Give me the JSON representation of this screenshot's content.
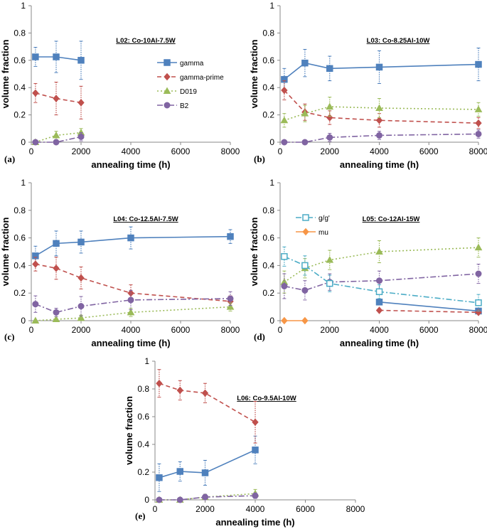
{
  "colors": {
    "gamma": "#4f81bd",
    "gamma_prime": "#c0504d",
    "d019": "#9bbb59",
    "b2": "#8064a2",
    "g_gprime": "#4bacc6",
    "mu": "#f79646",
    "error_bar": "#4f81bd"
  },
  "chart_data": [
    {
      "id": "a",
      "type": "line",
      "panel_label": "(a)",
      "title": "L02: Co-10Al-7.5W",
      "xlabel": "annealing time (h)",
      "ylabel": "volume fraction",
      "xlim": [
        0,
        8000
      ],
      "ylim": [
        0,
        1
      ],
      "xticks": [
        0,
        2000,
        4000,
        6000,
        8000
      ],
      "yticks": [
        0,
        0.2,
        0.4,
        0.6,
        0.8,
        1
      ],
      "ytick_labels": [
        "0",
        "0.2",
        "0.4",
        "0.6",
        "0.8",
        "1"
      ],
      "legend": [
        {
          "name": "gamma",
          "key": "gamma",
          "marker": "square",
          "dash": "solid"
        },
        {
          "name": "gamma-prime",
          "key": "gamma_prime",
          "marker": "diamond",
          "dash": "dashed"
        },
        {
          "name": "D019",
          "key": "d019",
          "marker": "triangle",
          "dash": "dotted"
        },
        {
          "name": "B2",
          "key": "b2",
          "marker": "circle",
          "dash": "dashdot"
        }
      ],
      "series": [
        {
          "name": "gamma",
          "key": "gamma",
          "marker": "square",
          "dash": "solid",
          "x": [
            168,
            1000,
            2000
          ],
          "y": [
            0.625,
            0.625,
            0.6
          ],
          "err": [
            0.07,
            0.115,
            0.14
          ]
        },
        {
          "name": "gamma-prime",
          "key": "gamma_prime",
          "marker": "diamond",
          "dash": "dashed",
          "x": [
            168,
            1000,
            2000
          ],
          "y": [
            0.36,
            0.32,
            0.29
          ],
          "err": [
            0.07,
            0.12,
            0.12
          ]
        },
        {
          "name": "D019",
          "key": "d019",
          "marker": "triangle",
          "dash": "dotted",
          "x": [
            168,
            1000,
            2000
          ],
          "y": [
            0.0,
            0.05,
            0.07
          ],
          "err": [
            0,
            0.03,
            0.03
          ]
        },
        {
          "name": "B2",
          "key": "b2",
          "marker": "circle",
          "dash": "dashdot",
          "x": [
            168,
            1000,
            2000
          ],
          "y": [
            0.0,
            0.0,
            0.04
          ],
          "err": [
            0,
            0,
            0.03
          ]
        }
      ]
    },
    {
      "id": "b",
      "type": "line",
      "panel_label": "(b)",
      "title": "L03: Co-8.25Al-10W",
      "xlabel": "annealing time (h)",
      "ylabel": "volume fraction",
      "xlim": [
        0,
        8000
      ],
      "ylim": [
        0,
        1
      ],
      "xticks": [
        0,
        2000,
        4000,
        6000,
        8000
      ],
      "yticks": [
        0,
        0.2,
        0.4,
        0.6,
        0.8,
        1
      ],
      "ytick_labels": [
        "0",
        "0.2",
        "0.4",
        "0.6",
        "0.8",
        "1"
      ],
      "series": [
        {
          "name": "gamma",
          "key": "gamma",
          "marker": "square",
          "dash": "solid",
          "x": [
            168,
            1000,
            2000,
            4000,
            8000
          ],
          "y": [
            0.46,
            0.58,
            0.54,
            0.55,
            0.57
          ],
          "err": [
            0.08,
            0.1,
            0.09,
            0.12,
            0.12
          ]
        },
        {
          "name": "gamma-prime",
          "key": "gamma_prime",
          "marker": "diamond",
          "dash": "dashed",
          "x": [
            168,
            1000,
            2000,
            4000,
            8000
          ],
          "y": [
            0.38,
            0.22,
            0.18,
            0.16,
            0.14
          ],
          "err": [
            0.07,
            0.06,
            0.05,
            0.05,
            0.04
          ]
        },
        {
          "name": "D019",
          "key": "d019",
          "marker": "triangle",
          "dash": "dotted",
          "x": [
            168,
            1000,
            2000,
            4000,
            8000
          ],
          "y": [
            0.16,
            0.21,
            0.26,
            0.25,
            0.24
          ],
          "err": [
            0.05,
            0.06,
            0.07,
            0.07,
            0.05
          ]
        },
        {
          "name": "B2",
          "key": "b2",
          "marker": "circle",
          "dash": "dashdot",
          "x": [
            168,
            1000,
            2000,
            4000,
            8000
          ],
          "y": [
            0.0,
            0.0,
            0.035,
            0.05,
            0.06
          ],
          "err": [
            0,
            0,
            0.03,
            0.03,
            0.03
          ]
        }
      ]
    },
    {
      "id": "c",
      "type": "line",
      "panel_label": "(c)",
      "title": "L04: Co-12.5Al-7.5W",
      "xlabel": "annealing time (h)",
      "ylabel": "volume fraction",
      "xlim": [
        0,
        8000
      ],
      "ylim": [
        0,
        1
      ],
      "xticks": [
        0,
        2000,
        4000,
        6000,
        8000
      ],
      "yticks": [
        0,
        0.2,
        0.4,
        0.6,
        0.8,
        1
      ],
      "ytick_labels": [
        "0",
        "0.2",
        "0.4",
        "0.6",
        "0.8",
        "1"
      ],
      "series": [
        {
          "name": "gamma",
          "key": "gamma",
          "marker": "square",
          "dash": "solid",
          "x": [
            168,
            1000,
            2000,
            4000,
            8000
          ],
          "y": [
            0.47,
            0.56,
            0.57,
            0.6,
            0.61
          ],
          "err": [
            0.07,
            0.09,
            0.08,
            0.08,
            0.05
          ]
        },
        {
          "name": "gamma-prime",
          "key": "gamma_prime",
          "marker": "diamond",
          "dash": "dashed",
          "x": [
            168,
            1000,
            2000,
            4000,
            8000
          ],
          "y": [
            0.41,
            0.38,
            0.31,
            0.2,
            0.14
          ],
          "err": [
            0.05,
            0.08,
            0.08,
            0.06,
            0.04
          ]
        },
        {
          "name": "D019",
          "key": "d019",
          "marker": "triangle",
          "dash": "dotted",
          "x": [
            168,
            1000,
            2000,
            4000,
            8000
          ],
          "y": [
            0.0,
            0.01,
            0.02,
            0.06,
            0.1
          ],
          "err": [
            0,
            0,
            0.02,
            0.03,
            0.03
          ]
        },
        {
          "name": "B2",
          "key": "b2",
          "marker": "circle",
          "dash": "dashdot",
          "x": [
            168,
            1000,
            2000,
            4000,
            8000
          ],
          "y": [
            0.12,
            0.06,
            0.105,
            0.15,
            0.16
          ],
          "err": [
            0.06,
            0.03,
            0.07,
            0.07,
            0.05
          ]
        }
      ]
    },
    {
      "id": "d",
      "type": "line",
      "panel_label": "(d)",
      "title": "L05: Co-12Al-15W",
      "xlabel": "annealing time (h)",
      "ylabel": "volume fraction",
      "xlim": [
        0,
        8000
      ],
      "ylim": [
        0,
        1
      ],
      "xticks": [
        0,
        2000,
        4000,
        6000,
        8000
      ],
      "yticks": [
        0,
        0.2,
        0.4,
        0.6,
        0.8,
        1
      ],
      "ytick_labels": [
        "0",
        "0.2",
        "0.4",
        "0.6",
        "0.8",
        "1"
      ],
      "legend": [
        {
          "name": "g/g'",
          "key": "g_gprime",
          "marker": "square-open",
          "dash": "dashdot"
        },
        {
          "name": "mu",
          "key": "mu",
          "marker": "diamond",
          "dash": "solid"
        }
      ],
      "series": [
        {
          "name": "gamma",
          "key": "gamma",
          "marker": "square",
          "dash": "solid",
          "x": [
            4000,
            8000
          ],
          "y": [
            0.135,
            0.07
          ],
          "err": [
            0,
            0
          ]
        },
        {
          "name": "gamma-prime",
          "key": "gamma_prime",
          "marker": "diamond",
          "dash": "dashed",
          "x": [
            4000,
            8000
          ],
          "y": [
            0.075,
            0.06
          ],
          "err": [
            0,
            0
          ]
        },
        {
          "name": "D019",
          "key": "d019",
          "marker": "triangle",
          "dash": "dotted",
          "x": [
            168,
            1000,
            2000,
            4000,
            8000
          ],
          "y": [
            0.28,
            0.38,
            0.44,
            0.5,
            0.53
          ],
          "err": [
            0.08,
            0.07,
            0.07,
            0.08,
            0.07
          ]
        },
        {
          "name": "B2",
          "key": "b2",
          "marker": "circle",
          "dash": "dashdot",
          "x": [
            168,
            1000,
            2000,
            4000,
            8000
          ],
          "y": [
            0.25,
            0.22,
            0.28,
            0.29,
            0.34
          ],
          "err": [
            0.09,
            0.07,
            0.06,
            0.07,
            0.07
          ]
        },
        {
          "name": "g/g'",
          "key": "g_gprime",
          "marker": "square-open",
          "dash": "dashdot",
          "x": [
            168,
            1000,
            2000,
            4000,
            8000
          ],
          "y": [
            0.465,
            0.4,
            0.27,
            0.21,
            0.13
          ],
          "err": [
            0.07,
            0.07,
            0.06,
            0.05,
            0.06
          ]
        },
        {
          "name": "mu",
          "key": "mu",
          "marker": "diamond",
          "dash": "solid",
          "x": [
            168,
            1000
          ],
          "y": [
            0.0,
            0.0
          ],
          "err": [
            0,
            0
          ]
        }
      ]
    },
    {
      "id": "e",
      "type": "line",
      "panel_label": "(e)",
      "title": "L06: Co-9.5Al-10W",
      "xlabel": "annealing time (h)",
      "ylabel": "volume fraction",
      "xlim": [
        0,
        8000
      ],
      "ylim": [
        0,
        1
      ],
      "xticks": [
        0,
        2000,
        4000,
        6000,
        8000
      ],
      "yticks": [
        0,
        0.2,
        0.4,
        0.6,
        0.8,
        1
      ],
      "ytick_labels": [
        "0",
        "0.2",
        "0.4",
        "0.6",
        "0.8",
        "1"
      ],
      "series": [
        {
          "name": "gamma",
          "key": "gamma",
          "marker": "square",
          "dash": "solid",
          "x": [
            168,
            1000,
            2000,
            4000
          ],
          "y": [
            0.16,
            0.205,
            0.195,
            0.36
          ],
          "err": [
            0.1,
            0.07,
            0.09,
            0.1
          ]
        },
        {
          "name": "gamma-prime",
          "key": "gamma_prime",
          "marker": "diamond",
          "dash": "dashed",
          "x": [
            168,
            1000,
            2000,
            4000
          ],
          "y": [
            0.84,
            0.79,
            0.77,
            0.56
          ],
          "err": [
            0.1,
            0.07,
            0.07,
            0.15
          ]
        },
        {
          "name": "D019",
          "key": "d019",
          "marker": "triangle",
          "dash": "dotted",
          "x": [
            168,
            1000,
            2000,
            4000
          ],
          "y": [
            0.0,
            0.0,
            0.02,
            0.045
          ],
          "err": [
            0,
            0,
            0.02,
            0.03
          ]
        },
        {
          "name": "B2",
          "key": "b2",
          "marker": "circle",
          "dash": "dashdot",
          "x": [
            168,
            1000,
            2000,
            4000
          ],
          "y": [
            0.0,
            0.0,
            0.02,
            0.03
          ],
          "err": [
            0,
            0,
            0.02,
            0.02
          ]
        }
      ]
    }
  ]
}
